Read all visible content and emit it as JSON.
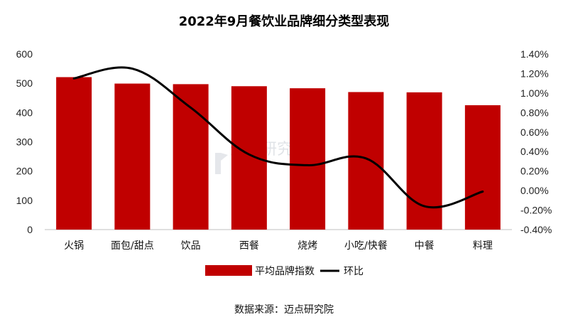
{
  "title": "2022年9月餐饮业品牌细分类型表现",
  "source": "数据来源：迈点研究院",
  "watermark": "迈点研究院",
  "colors": {
    "bar": "#c00000",
    "line": "#000000"
  },
  "chart_data": {
    "type": "bar",
    "categories": [
      "火锅",
      "面包/甜点",
      "饮品",
      "西餐",
      "烧烤",
      "小吃/快餐",
      "中餐",
      "料理"
    ],
    "series": [
      {
        "name": "平均品牌指数",
        "type": "bar",
        "axis": "left",
        "values": [
          521,
          499,
          497,
          490,
          483,
          470,
          469,
          425
        ]
      },
      {
        "name": "环比",
        "type": "line",
        "axis": "right",
        "values": [
          1.15,
          1.25,
          0.85,
          0.37,
          0.26,
          0.33,
          -0.16,
          -0.01
        ],
        "unit": "%"
      }
    ],
    "ylim_left": [
      0,
      600
    ],
    "yticks_left": [
      "0",
      "100",
      "200",
      "300",
      "400",
      "500",
      "600"
    ],
    "ylim_right": [
      -0.4,
      1.4
    ],
    "yticks_right": [
      "-0.40%",
      "-0.20%",
      "0.00%",
      "0.20%",
      "0.40%",
      "0.60%",
      "0.80%",
      "1.00%",
      "1.20%",
      "1.40%"
    ],
    "grid": false,
    "legend_position": "bottom"
  }
}
